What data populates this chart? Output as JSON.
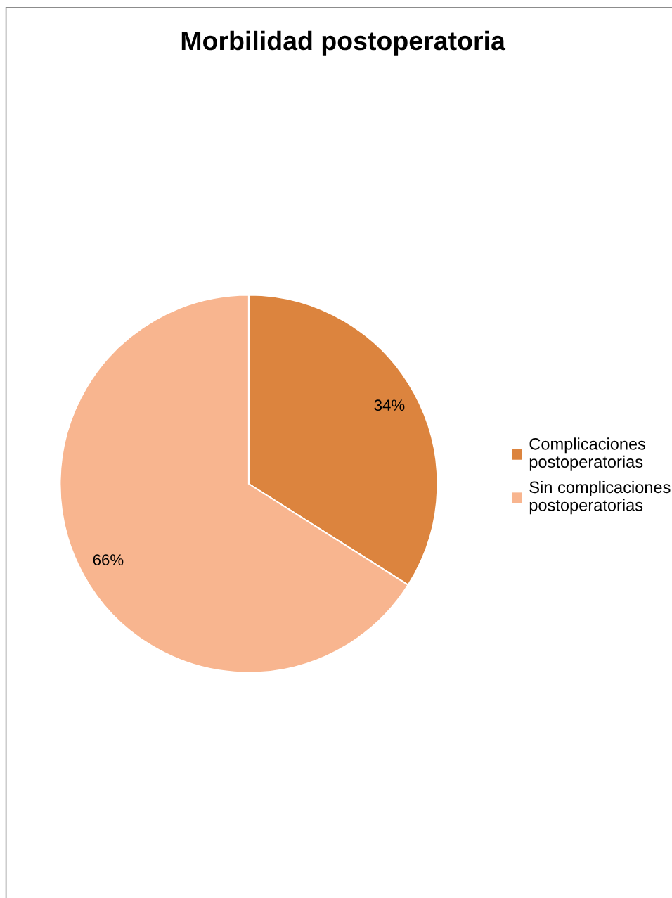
{
  "chart_data": {
    "type": "pie",
    "title": "Morbilidad postoperatoria",
    "categories": [
      "Complicaciones postoperatorias",
      "Sin complicaciones postoperatorias"
    ],
    "values": [
      34,
      66
    ],
    "colors": [
      "#dc843e",
      "#f8b58f"
    ],
    "value_labels": [
      "34%",
      "66%"
    ],
    "legend": "right"
  }
}
